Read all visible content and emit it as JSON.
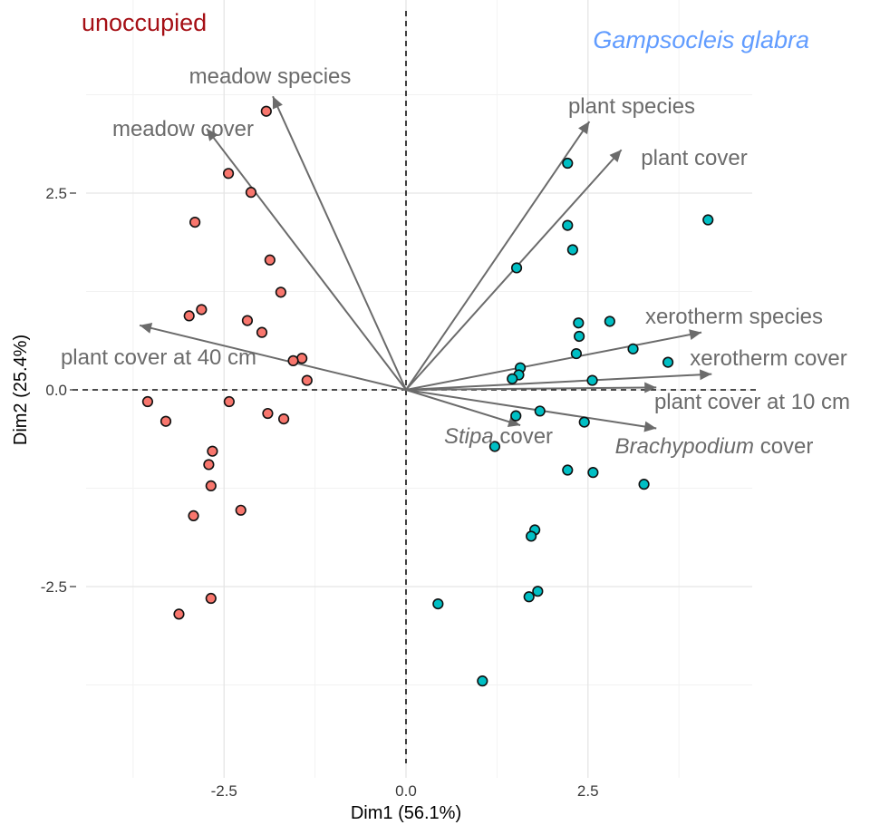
{
  "chart_data": {
    "type": "scatter",
    "xlabel": "Dim1 (56.1%)",
    "ylabel": "Dim2 (25.4%)",
    "xlim": [
      -3.6,
      4.5
    ],
    "ylim": [
      -5.0,
      4.9
    ],
    "xticks": [
      {
        "value": -2.5,
        "label": "-2.5"
      },
      {
        "value": 0,
        "label": "0.0"
      },
      {
        "value": 2.5,
        "label": "2.5"
      }
    ],
    "yticks": [
      {
        "value": 2.5,
        "label": "2.5"
      },
      {
        "value": 0,
        "label": "0.0"
      },
      {
        "value": -2.5,
        "label": "-2.5"
      }
    ],
    "grid": true,
    "groups": [
      {
        "name": "unoccupied",
        "label_color": "#a50f15",
        "point_color": "#f8766d",
        "points": [
          [
            -1.92,
            3.54
          ],
          [
            -2.44,
            2.75
          ],
          [
            -2.13,
            2.51
          ],
          [
            -2.9,
            2.13
          ],
          [
            -1.87,
            1.65
          ],
          [
            -1.72,
            1.24
          ],
          [
            -2.98,
            0.94
          ],
          [
            -2.81,
            1.02
          ],
          [
            -2.18,
            0.88
          ],
          [
            -1.98,
            0.73
          ],
          [
            -1.43,
            0.4
          ],
          [
            -1.55,
            0.37
          ],
          [
            -1.36,
            0.12
          ],
          [
            -3.55,
            -0.15
          ],
          [
            -3.3,
            -0.4
          ],
          [
            -2.43,
            -0.15
          ],
          [
            -1.9,
            -0.3
          ],
          [
            -1.68,
            -0.37
          ],
          [
            -2.66,
            -0.78
          ],
          [
            -2.71,
            -0.95
          ],
          [
            -2.68,
            -1.22
          ],
          [
            -2.92,
            -1.6
          ],
          [
            -2.27,
            -1.53
          ],
          [
            -2.68,
            -2.65
          ],
          [
            -3.12,
            -2.85
          ]
        ]
      },
      {
        "name": "Gampsocleis glabra",
        "label_color": "#619cff",
        "point_color": "#00bfc4",
        "points": [
          [
            2.22,
            2.88
          ],
          [
            4.15,
            2.16
          ],
          [
            2.22,
            2.09
          ],
          [
            2.29,
            1.78
          ],
          [
            1.52,
            1.55
          ],
          [
            2.37,
            0.85
          ],
          [
            2.8,
            0.87
          ],
          [
            2.38,
            0.68
          ],
          [
            2.34,
            0.46
          ],
          [
            3.12,
            0.52
          ],
          [
            3.6,
            0.35
          ],
          [
            1.57,
            0.28
          ],
          [
            1.55,
            0.19
          ],
          [
            1.46,
            0.14
          ],
          [
            2.56,
            0.12
          ],
          [
            1.51,
            -0.33
          ],
          [
            1.84,
            -0.27
          ],
          [
            2.45,
            -0.41
          ],
          [
            1.22,
            -0.72
          ],
          [
            2.22,
            -1.02
          ],
          [
            2.57,
            -1.05
          ],
          [
            3.27,
            -1.2
          ],
          [
            1.77,
            -1.78
          ],
          [
            1.72,
            -1.86
          ],
          [
            1.81,
            -2.56
          ],
          [
            1.69,
            -2.63
          ],
          [
            0.44,
            -2.72
          ],
          [
            1.05,
            -3.7
          ]
        ]
      }
    ],
    "vectors": [
      {
        "label": "meadow species",
        "x": -1.83,
        "y": 3.73
      },
      {
        "label": "meadow cover",
        "x": -2.74,
        "y": 3.32
      },
      {
        "label": "plant species",
        "x": 2.52,
        "y": 3.41
      },
      {
        "label": "plant cover",
        "x": 2.96,
        "y": 3.05
      },
      {
        "label": "plant cover at 40 cm",
        "x": -3.66,
        "y": 0.82
      },
      {
        "label": "xerotherm species",
        "x": 4.06,
        "y": 0.73
      },
      {
        "label": "xerotherm cover",
        "x": 4.2,
        "y": 0.2
      },
      {
        "label": "plant cover at 10 cm",
        "x": 3.44,
        "y": 0.03
      },
      {
        "label": "Stipa cover",
        "italic_part": "Stipa",
        "x": 1.57,
        "y": -0.45
      },
      {
        "label": "Brachypodium cover",
        "italic_part": "Brachypodium",
        "x": 3.44,
        "y": -0.49
      }
    ]
  }
}
